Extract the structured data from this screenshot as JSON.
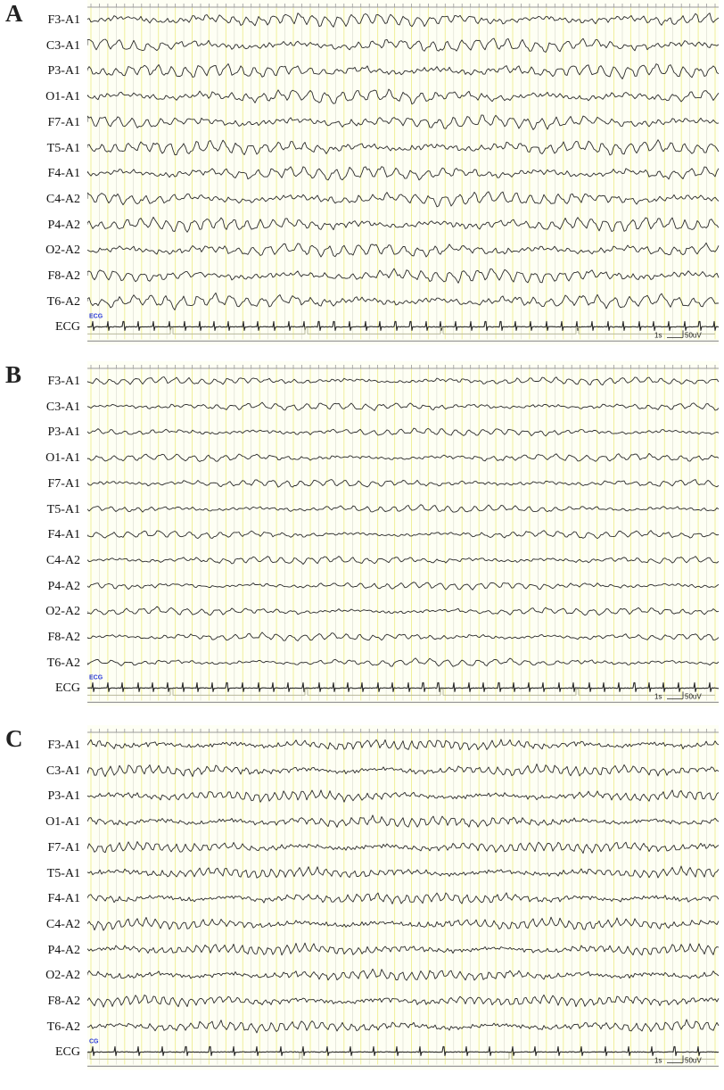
{
  "panels": [
    {
      "letter": "A",
      "channels": [
        "F3-A1",
        "C3-A1",
        "P3-A1",
        "O1-A1",
        "F7-A1",
        "T5-A1",
        "F4-A1",
        "C4-A2",
        "P4-A2",
        "O2-A2",
        "F8-A2",
        "T6-A2",
        "ECG"
      ],
      "ecg_tag": "ECG",
      "scale_time": "1s",
      "scale_amp": "50uV"
    },
    {
      "letter": "B",
      "channels": [
        "F3-A1",
        "C3-A1",
        "P3-A1",
        "O1-A1",
        "F7-A1",
        "T5-A1",
        "F4-A1",
        "C4-A2",
        "P4-A2",
        "O2-A2",
        "F8-A2",
        "T6-A2",
        "ECG"
      ],
      "ecg_tag": "ECG",
      "scale_time": "1s",
      "scale_amp": "50uV"
    },
    {
      "letter": "C",
      "channels": [
        "F3-A1",
        "C3-A1",
        "P3-A1",
        "O1-A1",
        "F7-A1",
        "T5-A1",
        "F4-A1",
        "C4-A2",
        "P4-A2",
        "O2-A2",
        "F8-A2",
        "T6-A2",
        "ECG"
      ],
      "ecg_tag": "CG",
      "scale_time": "1s",
      "scale_amp": "50uV"
    }
  ],
  "colors": {
    "background": "#fefff4",
    "grid_yellow": "#f0ef9c",
    "grid_gray": "#d8d8cc",
    "trace": "#2a2a2a",
    "ecg_tag": "#2b3bd8",
    "axis": "#9a9a9a"
  }
}
